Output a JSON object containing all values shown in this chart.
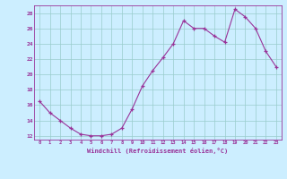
{
  "x": [
    0,
    1,
    2,
    3,
    4,
    5,
    6,
    7,
    8,
    9,
    10,
    11,
    12,
    13,
    14,
    15,
    16,
    17,
    18,
    19,
    20,
    21,
    22,
    23
  ],
  "y": [
    16.5,
    15.0,
    14.0,
    13.0,
    12.2,
    12.0,
    12.0,
    12.2,
    13.0,
    15.5,
    18.5,
    20.5,
    22.2,
    24.0,
    27.0,
    26.0,
    26.0,
    25.0,
    24.2,
    28.5,
    27.5,
    26.0,
    23.0,
    21.0
  ],
  "background_color": "#cceeff",
  "line_color": "#993399",
  "marker_color": "#993399",
  "grid_color": "#99cccc",
  "xlabel": "Windchill (Refroidissement éolien,°C)",
  "ylim": [
    11.5,
    29
  ],
  "xlim": [
    -0.5,
    23.5
  ],
  "yticks": [
    12,
    14,
    16,
    18,
    20,
    22,
    24,
    26,
    28
  ],
  "xticks": [
    0,
    1,
    2,
    3,
    4,
    5,
    6,
    7,
    8,
    9,
    10,
    11,
    12,
    13,
    14,
    15,
    16,
    17,
    18,
    19,
    20,
    21,
    22,
    23
  ]
}
